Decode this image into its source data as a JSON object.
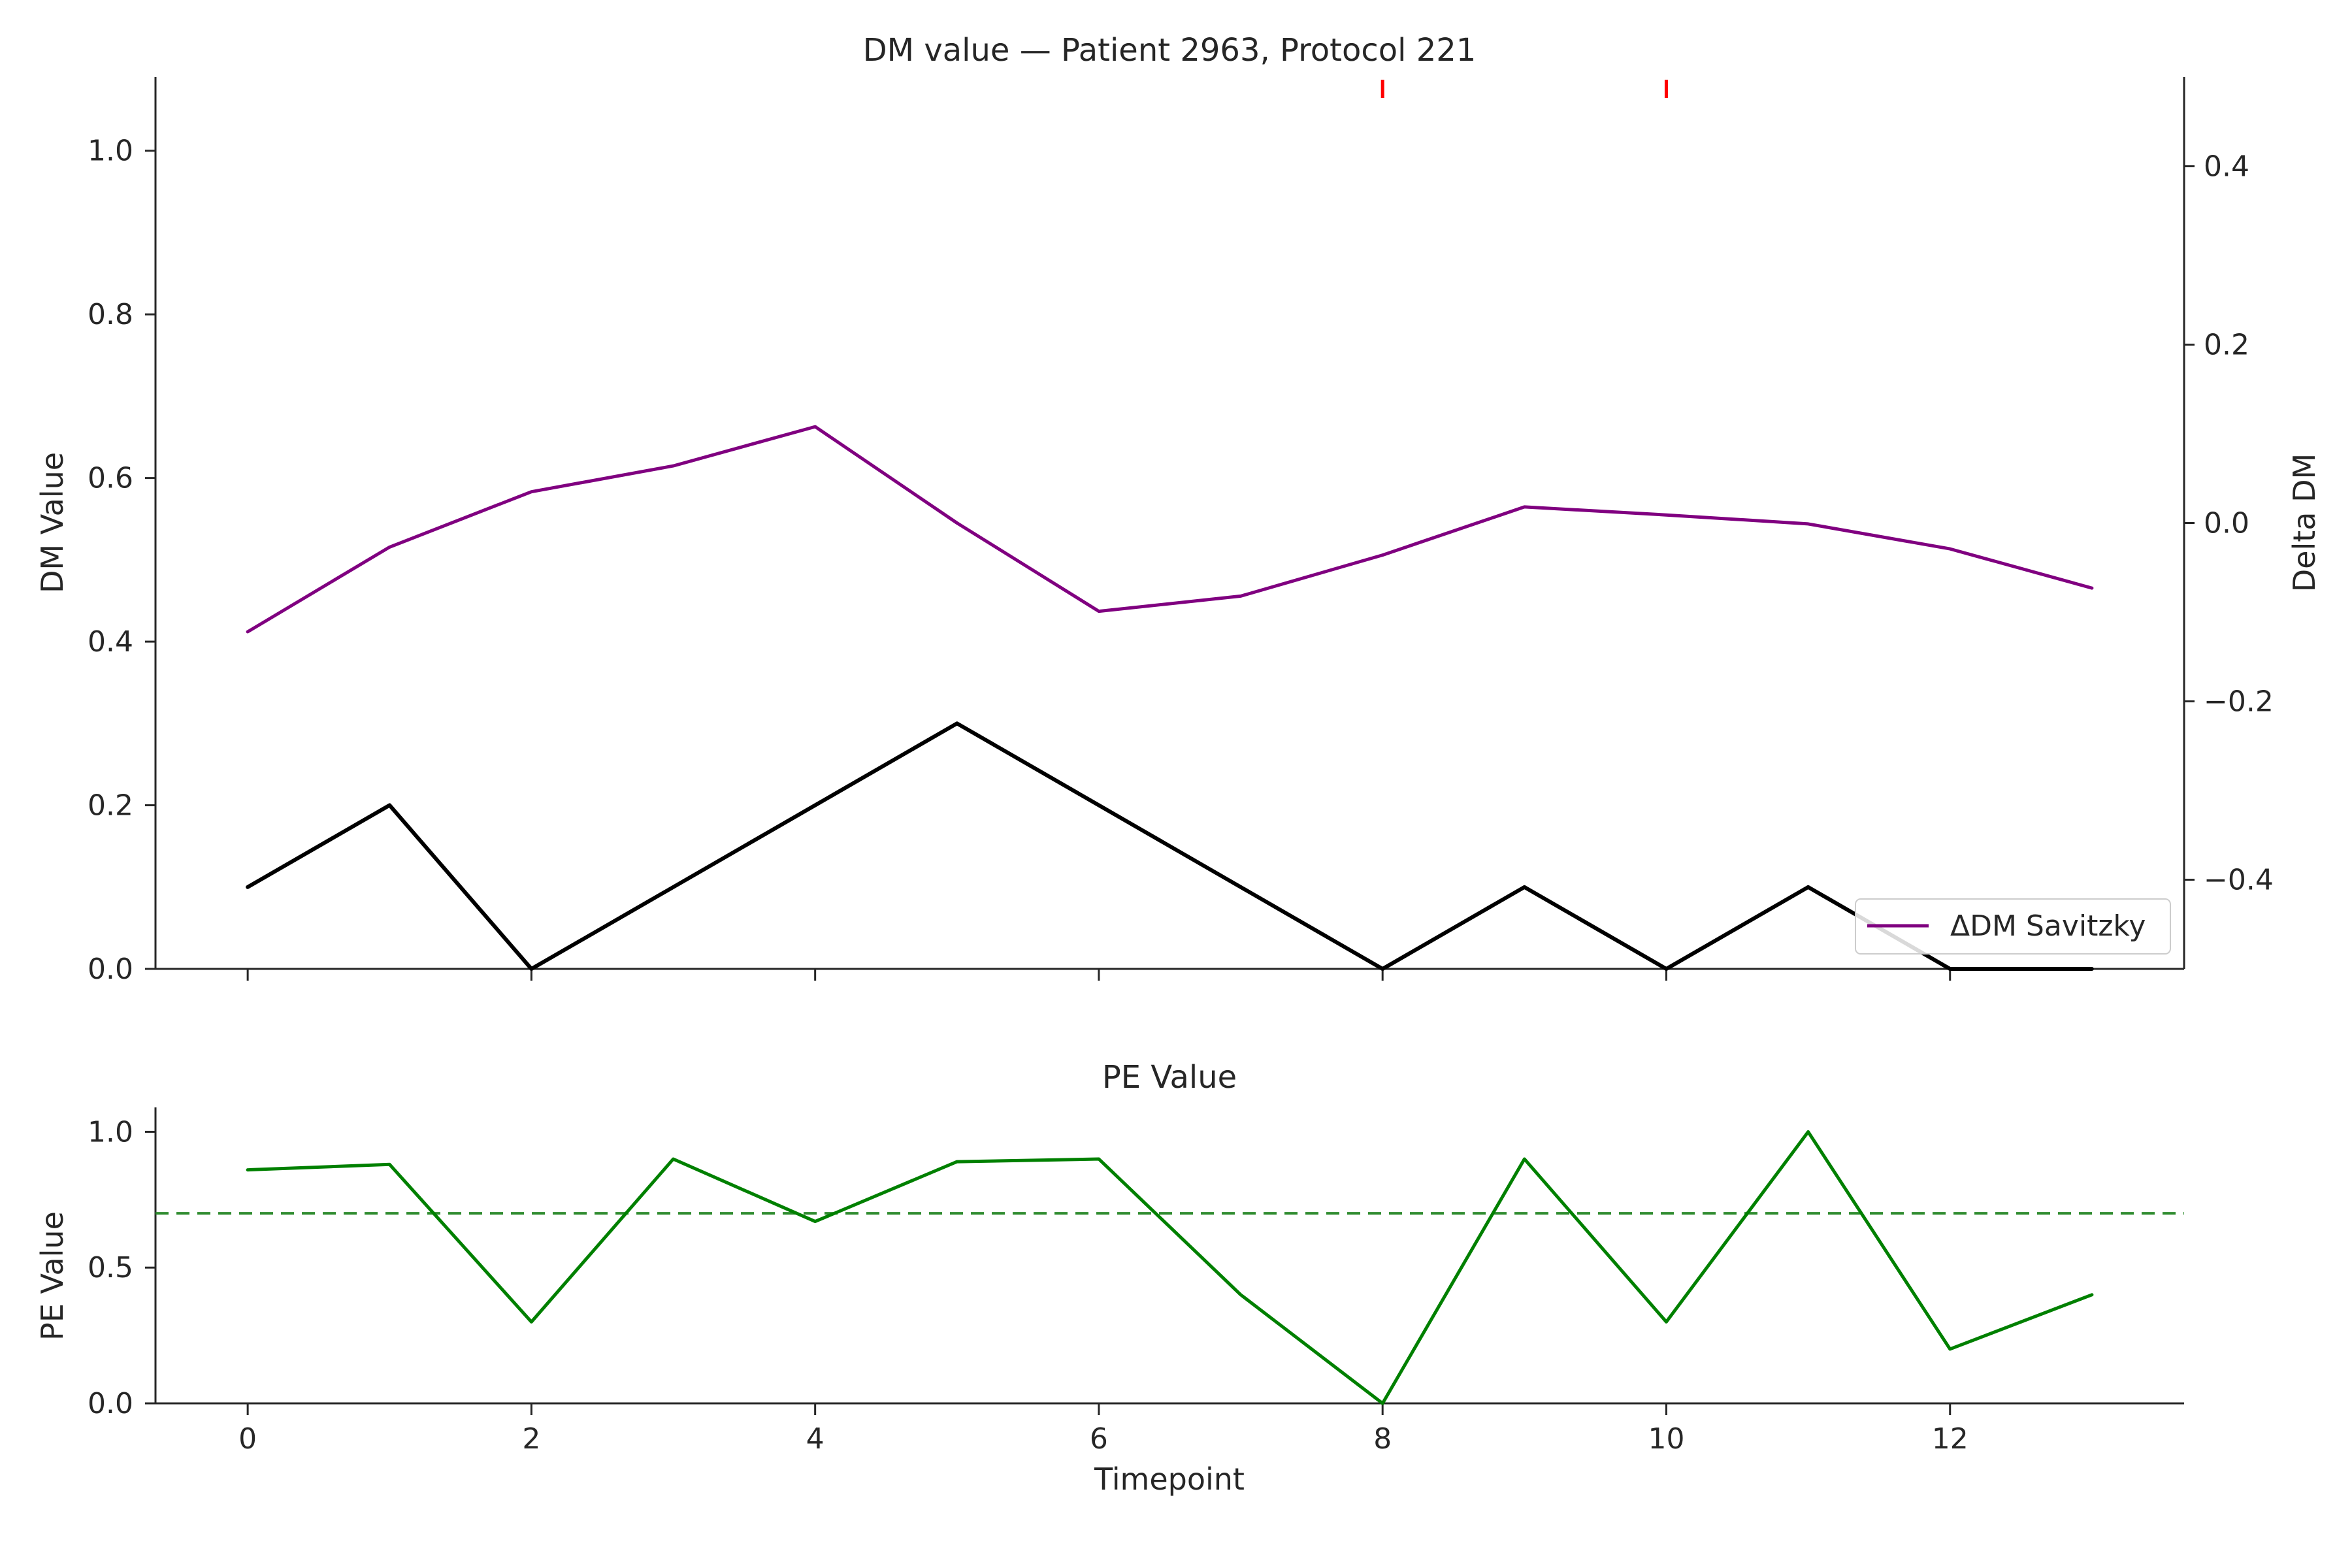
{
  "chart_data": [
    {
      "type": "line",
      "panel": "top",
      "title": "DM value — Patient 2963, Protocol 221",
      "xlabel": "",
      "ylabel": "DM Value",
      "y2label": "Delta DM",
      "x": [
        0,
        1,
        2,
        3,
        4,
        5,
        6,
        7,
        8,
        9,
        10,
        11,
        12,
        13
      ],
      "xlim": [
        -0.65,
        13.65
      ],
      "ylim": [
        0,
        1.09
      ],
      "y2lim": [
        -0.5,
        0.5
      ],
      "xticks": [
        "0",
        "2",
        "4",
        "6",
        "8",
        "10",
        "12"
      ],
      "yticks": [
        "0.0",
        "0.2",
        "0.4",
        "0.6",
        "0.8",
        "1.0"
      ],
      "y2ticks": [
        "−0.4",
        "−0.2",
        "0.0",
        "0.2",
        "0.4"
      ],
      "series": [
        {
          "name": "DM Value",
          "axis": "left",
          "color": "#000000",
          "values": [
            0.1,
            0.2,
            0.0,
            0.1,
            0.2,
            0.3,
            0.2,
            0.1,
            0.0,
            0.1,
            0.0,
            0.1,
            0.0,
            0.0
          ]
        },
        {
          "name": "ΔDM Savitzky",
          "axis": "right",
          "color": "#800080",
          "values": [
            -0.122,
            -0.027,
            0.035,
            0.064,
            0.108,
            0.0,
            -0.099,
            -0.082,
            -0.036,
            0.018,
            0.009,
            -0.001,
            -0.029,
            -0.073
          ]
        }
      ],
      "markers": {
        "color": "#ff0000",
        "x": [
          8,
          10
        ]
      },
      "legend": {
        "position": "bottom-right",
        "entries": [
          "ΔDM Savitzky"
        ]
      }
    },
    {
      "type": "line",
      "panel": "bottom",
      "title": "PE Value",
      "xlabel": "Timepoint",
      "ylabel": "PE Value",
      "x": [
        0,
        1,
        2,
        3,
        4,
        5,
        6,
        7,
        8,
        9,
        10,
        11,
        12,
        13
      ],
      "xlim": [
        -0.65,
        13.65
      ],
      "ylim": [
        0,
        1.09
      ],
      "xticks": [
        "0",
        "2",
        "4",
        "6",
        "8",
        "10",
        "12"
      ],
      "yticks": [
        "0.0",
        "0.5",
        "1.0"
      ],
      "series": [
        {
          "name": "PE Value",
          "color": "#008000",
          "values": [
            0.86,
            0.88,
            0.3,
            0.9,
            0.67,
            0.89,
            0.9,
            0.4,
            0.0,
            0.9,
            0.3,
            1.0,
            0.2,
            0.4
          ]
        }
      ],
      "threshold": {
        "value": 0.7,
        "color": "#2e8b2e",
        "style": "dashed"
      }
    }
  ]
}
